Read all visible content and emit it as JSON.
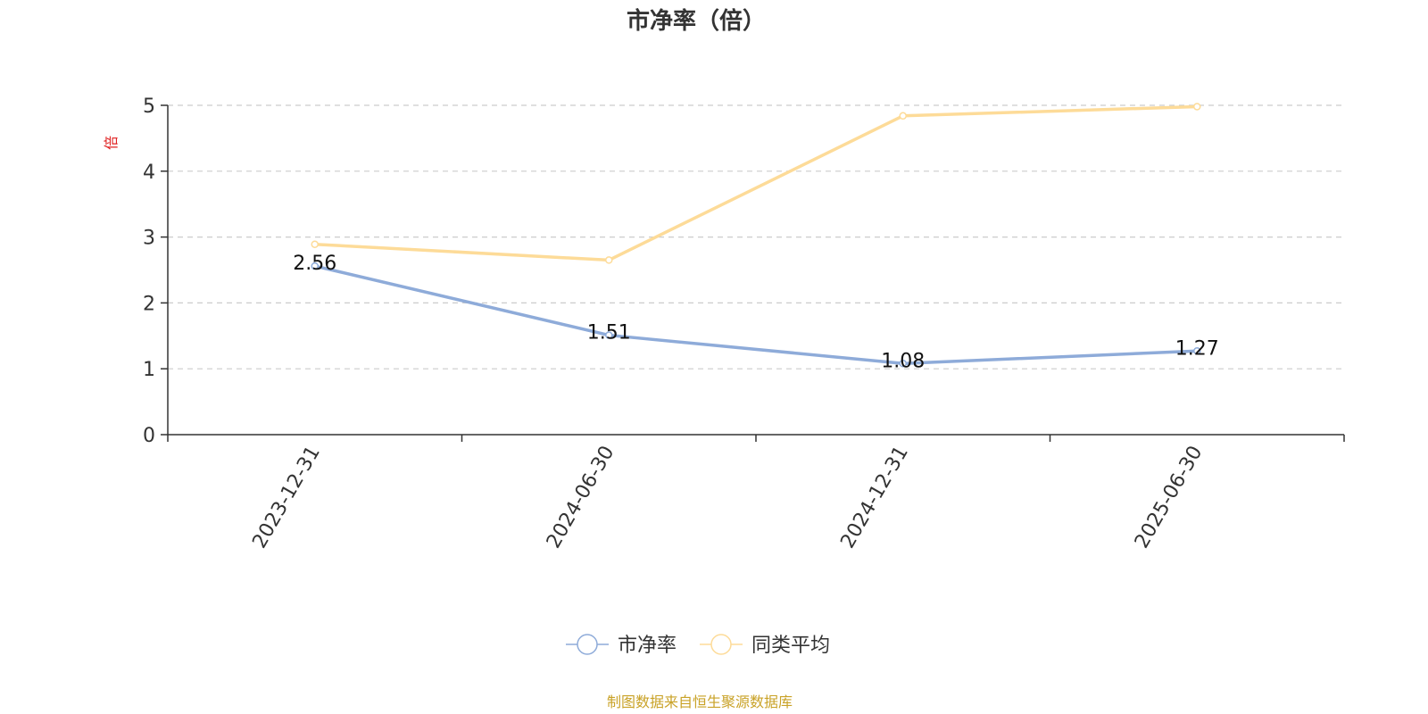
{
  "chart_data": {
    "type": "line",
    "title": "市净率（倍）",
    "ylabel": "倍",
    "xlabel": "",
    "categories": [
      "2023-12-31",
      "2024-06-30",
      "2024-12-31",
      "2025-06-30"
    ],
    "ylim": [
      0,
      5
    ],
    "yticks": [
      0,
      1,
      2,
      3,
      4,
      5
    ],
    "grid": true,
    "legend_position": "bottom",
    "series": [
      {
        "name": "市净率",
        "values": [
          2.56,
          1.51,
          1.08,
          1.27
        ],
        "color": "#8eabd9",
        "labels": [
          "2.56",
          "1.51",
          "1.08",
          "1.27"
        ]
      },
      {
        "name": "同类平均",
        "values": [
          2.89,
          2.65,
          4.84,
          4.98
        ],
        "color": "#fddb98"
      }
    ]
  },
  "footer": {
    "source": "制图数据来自恒生聚源数据库"
  }
}
